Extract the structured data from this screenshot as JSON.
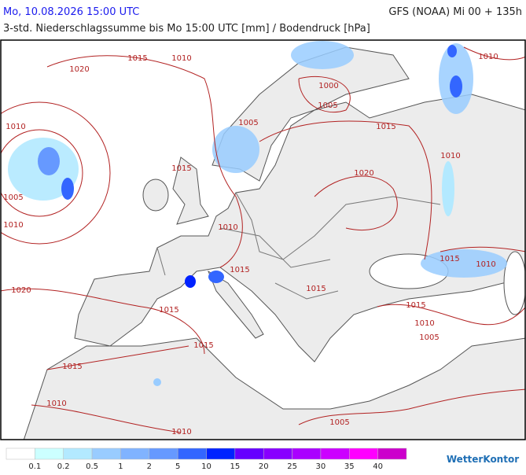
{
  "header": {
    "valid_time": "Mo, 10.08.2026 15:00 UTC",
    "model_run": "GFS (NOAA) Mi 00 + 135h",
    "subtitle": "3-std. Niederschlagssumme bis Mo 15:00 UTC [mm] / Bodendruck [hPa]"
  },
  "isobar_labels": [
    1015,
    1010,
    1020,
    1010,
    1000,
    1005,
    1005,
    1015,
    1010,
    1015,
    1020,
    1010,
    1005,
    1010,
    1010,
    1015,
    1010,
    1015,
    1020,
    1015,
    1015,
    1015,
    1010,
    1005,
    1015,
    1015,
    1010,
    1005,
    1010
  ],
  "legend": {
    "colors": [
      "#ffffff",
      "#ccffff",
      "#b3e9ff",
      "#99ccff",
      "#80b3ff",
      "#6699ff",
      "#3366ff",
      "#0022ff",
      "#6600ff",
      "#8800ff",
      "#aa00ff",
      "#cc00ff",
      "#ff00ff",
      "#cc00cc"
    ],
    "thresholds": [
      0.1,
      0.2,
      0.5,
      1,
      2,
      5,
      10,
      15,
      20,
      25,
      30,
      35,
      40
    ]
  },
  "logo": "WetterKontor"
}
